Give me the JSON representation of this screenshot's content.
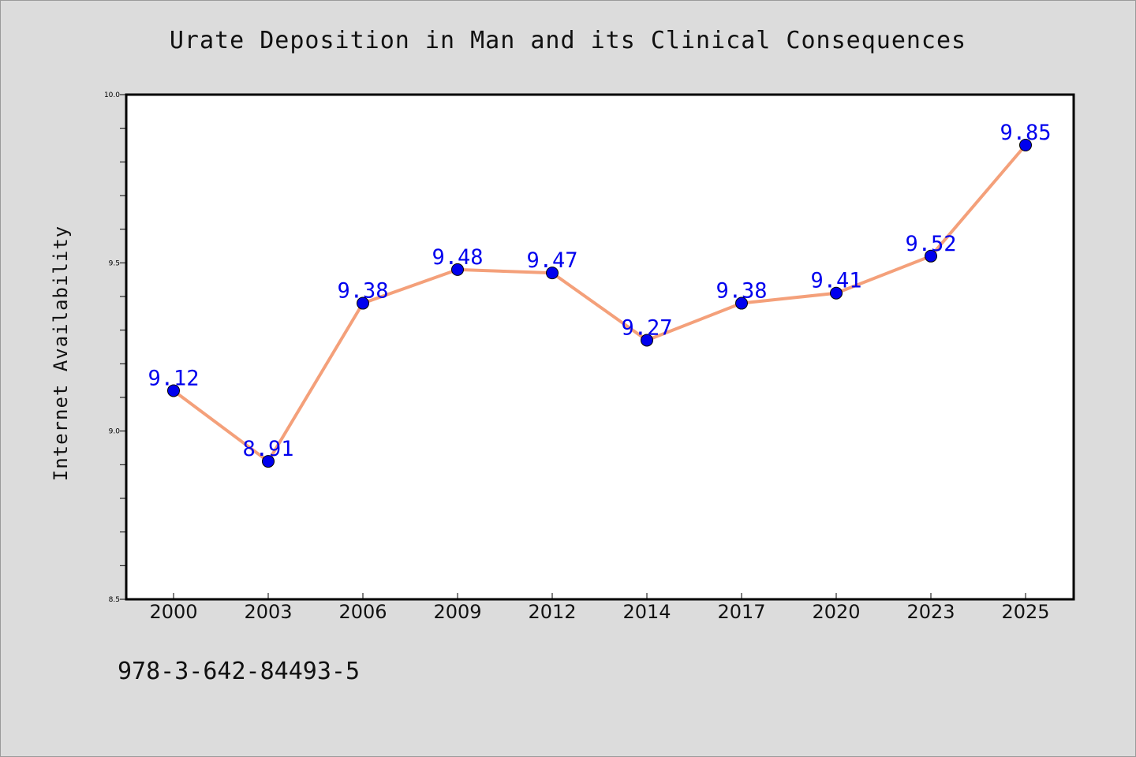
{
  "chart_data": {
    "type": "line",
    "title": "Urate Deposition in Man and its Clinical Consequences",
    "xlabel": "",
    "ylabel": "Internet Availability",
    "categories": [
      "2000",
      "2003",
      "2006",
      "2009",
      "2012",
      "2014",
      "2017",
      "2020",
      "2023",
      "2025"
    ],
    "series": [
      {
        "values": [
          9.12,
          8.91,
          9.38,
          9.48,
          9.47,
          9.27,
          9.38,
          9.41,
          9.52,
          9.85
        ],
        "labels": [
          "9.12",
          "8.91",
          "9.38",
          "9.48",
          "9.47",
          "9.27",
          "9.38",
          "9.41",
          "9.52",
          "9.85"
        ]
      }
    ],
    "ylim": [
      8.5,
      10.0
    ],
    "yticks": [
      "8.5",
      "9.0",
      "9.5",
      "10.0"
    ],
    "grid": false,
    "colors": {
      "line": "#f4a07a",
      "marker": "#0000ee",
      "label": "#0000ee",
      "background": "#dcdcdc",
      "plot_background": "#ffffff"
    }
  },
  "footer": {
    "text": "978-3-642-84493-5"
  }
}
